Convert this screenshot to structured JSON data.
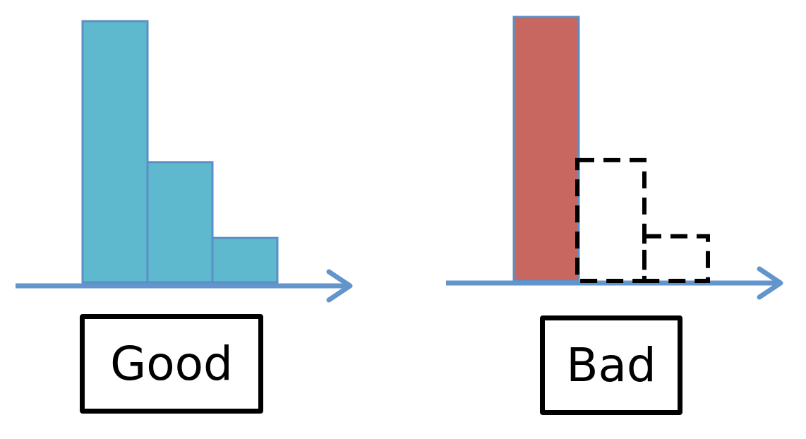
{
  "good": {
    "label": "Good",
    "bars": [
      1.0,
      0.46,
      0.17
    ],
    "color": "#5FB9CE"
  },
  "bad": {
    "label": "Bad",
    "bars": [
      1.0
    ],
    "dashed_bars": [
      0.46,
      0.17
    ],
    "color": "#C86660"
  },
  "colors": {
    "axis": "#6195CB",
    "bar_edge": "#5B8FC5",
    "dashed": "#000000"
  }
}
